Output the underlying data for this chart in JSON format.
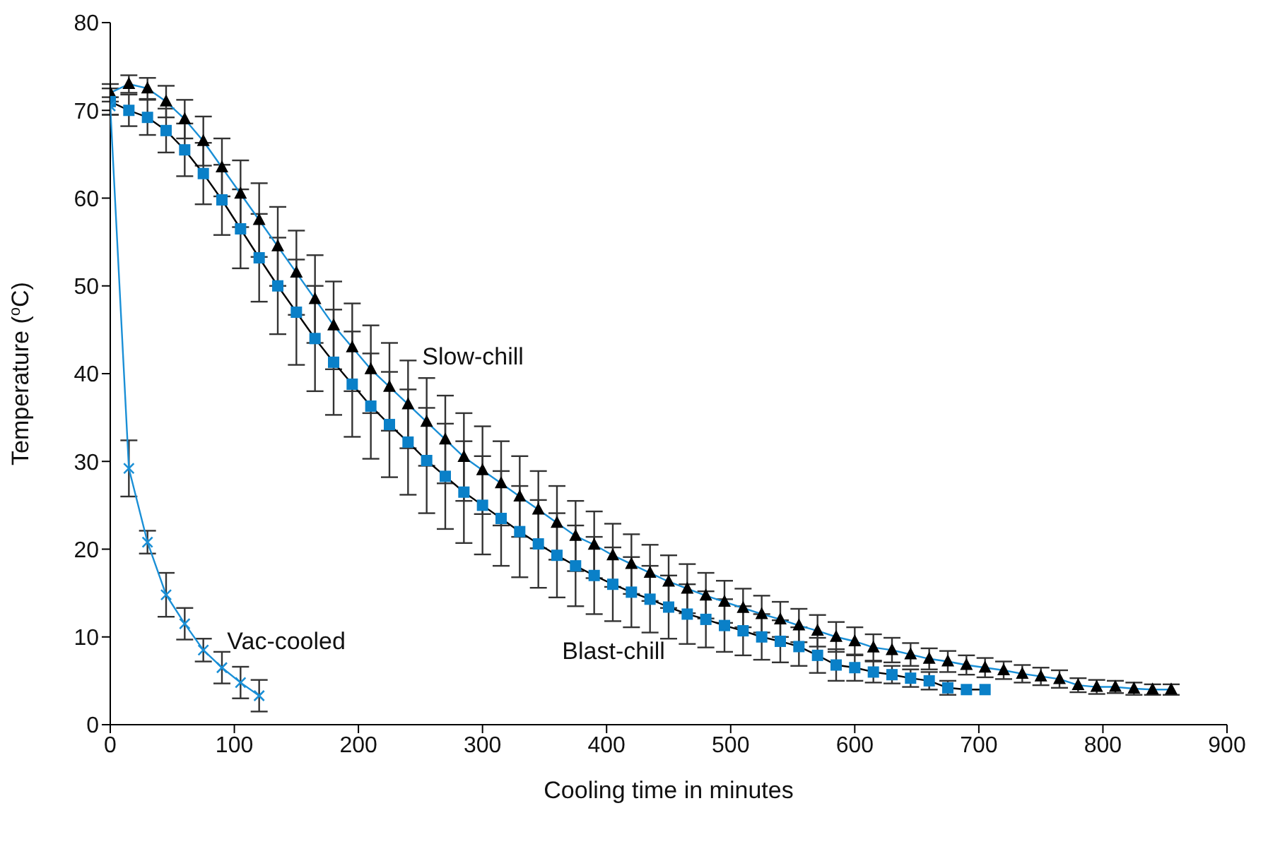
{
  "chart_data": {
    "type": "line",
    "xlabel": "Cooling time in minutes",
    "ylabel": "Temperature ($^{o}$C)",
    "xlim": [
      0,
      900
    ],
    "xticks": [
      0,
      100,
      200,
      300,
      400,
      500,
      600,
      700,
      800,
      900
    ],
    "ylim": [
      0,
      80
    ],
    "yticks": [
      0,
      10,
      20,
      30,
      40,
      50,
      60,
      70,
      80
    ],
    "series": [
      {
        "name": "Slow-chill",
        "color": "#000000",
        "marker": "triangle",
        "x": [
          0,
          15,
          30,
          45,
          60,
          75,
          90,
          105,
          120,
          135,
          150,
          165,
          180,
          195,
          210,
          225,
          240,
          255,
          270,
          285,
          300,
          315,
          330,
          345,
          360,
          375,
          390,
          405,
          420,
          435,
          450,
          465,
          480,
          495,
          510,
          525,
          540,
          555,
          570,
          585,
          600,
          615,
          630,
          645,
          660,
          675,
          690,
          705,
          720,
          735,
          750,
          765,
          780,
          795,
          810,
          825,
          840,
          855
        ],
        "values": [
          72,
          73,
          72.5,
          71,
          69,
          66.5,
          63.5,
          60.5,
          57.5,
          54.5,
          51.5,
          48.5,
          45.5,
          43,
          40.5,
          38.5,
          36.5,
          34.5,
          32.5,
          30.5,
          29,
          27.5,
          26,
          24.5,
          23,
          21.5,
          20.5,
          19.3,
          18.3,
          17.3,
          16.3,
          15.5,
          14.7,
          14,
          13.3,
          12.6,
          12,
          11.3,
          10.7,
          10,
          9.5,
          8.8,
          8.5,
          8,
          7.5,
          7.2,
          6.8,
          6.5,
          6.2,
          5.8,
          5.5,
          5.2,
          4.5,
          4.3,
          4.3,
          4.1,
          4,
          4
        ],
        "errors": [
          1,
          1,
          1.2,
          1.8,
          2.2,
          2.8,
          3.3,
          3.8,
          4.2,
          4.5,
          4.8,
          5,
          5,
          5,
          5,
          5,
          5,
          5,
          5,
          5,
          5,
          4.8,
          4.6,
          4.4,
          4.2,
          4,
          3.8,
          3.6,
          3.4,
          3.2,
          3,
          2.8,
          2.6,
          2.4,
          2.2,
          2.1,
          2,
          1.9,
          1.8,
          1.7,
          1.6,
          1.5,
          1.4,
          1.3,
          1.2,
          1.2,
          1.1,
          1.1,
          1,
          1,
          1,
          1,
          0.8,
          0.8,
          0.7,
          0.7,
          0.6,
          0.6
        ]
      },
      {
        "name": "Blast-chill",
        "color": "#0a80c8",
        "marker": "square",
        "x": [
          0,
          15,
          30,
          45,
          60,
          75,
          90,
          105,
          120,
          135,
          150,
          165,
          180,
          195,
          210,
          225,
          240,
          255,
          270,
          285,
          300,
          315,
          330,
          345,
          360,
          375,
          390,
          405,
          420,
          435,
          450,
          465,
          480,
          495,
          510,
          525,
          540,
          555,
          570,
          585,
          600,
          615,
          630,
          645,
          660,
          675,
          690,
          705
        ],
        "values": [
          71,
          70,
          69.2,
          67.7,
          65.5,
          62.8,
          59.8,
          56.5,
          53.2,
          50,
          47,
          44,
          41.3,
          38.8,
          36.3,
          34.2,
          32.2,
          30.1,
          28.3,
          26.5,
          25,
          23.5,
          22,
          20.6,
          19.3,
          18.1,
          17,
          16,
          15.1,
          14.3,
          13.4,
          12.6,
          12,
          11.3,
          10.7,
          10,
          9.5,
          8.9,
          7.9,
          6.8,
          6.5,
          6,
          5.7,
          5.3,
          5,
          4.2,
          4,
          4
        ],
        "errors": [
          1.5,
          1.8,
          2,
          2.5,
          3,
          3.5,
          4,
          4.5,
          5,
          5.5,
          6,
          6,
          6,
          6,
          6,
          6,
          6,
          6,
          6,
          5.8,
          5.6,
          5.4,
          5.2,
          5,
          4.8,
          4.6,
          4.4,
          4.2,
          4,
          3.8,
          3.6,
          3.4,
          3.2,
          3,
          2.8,
          2.6,
          2.4,
          2.2,
          2,
          1.8,
          1.5,
          1.2,
          1,
          1,
          1,
          0.8,
          null,
          null
        ]
      },
      {
        "name": "Vac-cooled",
        "color": "#1a8fd6",
        "marker": "cross",
        "x": [
          0,
          15,
          30,
          45,
          60,
          75,
          90,
          105,
          120
        ],
        "values": [
          70.5,
          29.2,
          20.8,
          14.8,
          11.5,
          8.5,
          6.5,
          4.8,
          3.3
        ],
        "errors": [
          1,
          3.2,
          1.3,
          2.5,
          1.8,
          1.3,
          1.8,
          1.8,
          1.8
        ]
      }
    ]
  }
}
